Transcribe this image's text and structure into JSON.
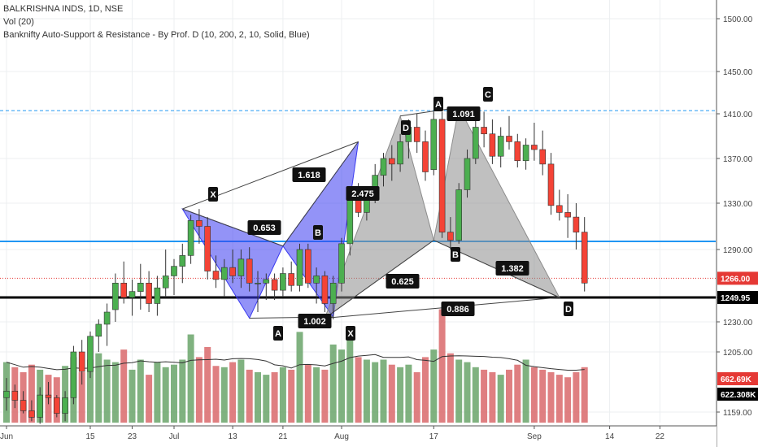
{
  "legend": {
    "symbol_line": "BALKRISHNA INDS, 1D, NSE",
    "volume_line": "Vol (20)",
    "indicator_line": "Banknifty Auto-Support & Resistance - By Prof. D (10, 200, 2, 10, Solid, Blue)"
  },
  "chart_data": {
    "type": "candlestick",
    "symbol": "BALKRISHNA INDS",
    "interval": "1D",
    "exchange": "NSE",
    "y_axis": {
      "ticks": [
        "1159.00",
        "1205.00",
        "1230.00",
        "1250.00",
        "1290.00",
        "1330.00",
        "1370.00",
        "1410.00",
        "1450.00",
        "1500.00"
      ],
      "range": [
        1148,
        1512
      ]
    },
    "x_axis": {
      "ticks": [
        {
          "label": "Jun",
          "index": 0
        },
        {
          "label": "15",
          "index": 10
        },
        {
          "label": "23",
          "index": 15
        },
        {
          "label": "Jul",
          "index": 20
        },
        {
          "label": "13",
          "index": 27
        },
        {
          "label": "21",
          "index": 33
        },
        {
          "label": "Aug",
          "index": 40
        },
        {
          "label": "17",
          "index": 51
        },
        {
          "label": "Sep",
          "index": 63
        },
        {
          "label": "14",
          "index": 72
        },
        {
          "label": "22",
          "index": 78
        }
      ]
    },
    "candles": [
      [
        1170,
        1185,
        1160,
        1175,
        48
      ],
      [
        1175,
        1180,
        1162,
        1168,
        44
      ],
      [
        1168,
        1175,
        1158,
        1160,
        40
      ],
      [
        1160,
        1168,
        1152,
        1155,
        46
      ],
      [
        1155,
        1178,
        1150,
        1172,
        42
      ],
      [
        1172,
        1182,
        1165,
        1170,
        38
      ],
      [
        1170,
        1172,
        1155,
        1158,
        36
      ],
      [
        1158,
        1175,
        1152,
        1170,
        45
      ],
      [
        1170,
        1210,
        1165,
        1205,
        52
      ],
      [
        1205,
        1215,
        1180,
        1190,
        40
      ],
      [
        1190,
        1222,
        1185,
        1218,
        50
      ],
      [
        1218,
        1232,
        1205,
        1228,
        55
      ],
      [
        1228,
        1245,
        1210,
        1238,
        50
      ],
      [
        1240,
        1270,
        1230,
        1262,
        48
      ],
      [
        1262,
        1280,
        1245,
        1250,
        58
      ],
      [
        1250,
        1265,
        1235,
        1255,
        42
      ],
      [
        1255,
        1278,
        1240,
        1262,
        50
      ],
      [
        1262,
        1272,
        1238,
        1245,
        38
      ],
      [
        1245,
        1268,
        1235,
        1258,
        48
      ],
      [
        1258,
        1290,
        1250,
        1268,
        44
      ],
      [
        1268,
        1282,
        1252,
        1276,
        46
      ],
      [
        1276,
        1295,
        1262,
        1285,
        50
      ],
      [
        1285,
        1320,
        1278,
        1315,
        70
      ],
      [
        1315,
        1325,
        1295,
        1310,
        52
      ],
      [
        1310,
        1318,
        1265,
        1272,
        60
      ],
      [
        1272,
        1285,
        1258,
        1265,
        45
      ],
      [
        1265,
        1282,
        1250,
        1275,
        44
      ],
      [
        1275,
        1290,
        1262,
        1268,
        48
      ],
      [
        1268,
        1290,
        1258,
        1282,
        50
      ],
      [
        1282,
        1292,
        1255,
        1262,
        42
      ],
      [
        1262,
        1272,
        1238,
        1262,
        40
      ],
      [
        1262,
        1270,
        1248,
        1265,
        38
      ],
      [
        1265,
        1270,
        1248,
        1256,
        40
      ],
      [
        1256,
        1275,
        1250,
        1270,
        44
      ],
      [
        1270,
        1280,
        1255,
        1260,
        42
      ],
      [
        1260,
        1295,
        1255,
        1290,
        72
      ],
      [
        1290,
        1295,
        1258,
        1262,
        46
      ],
      [
        1262,
        1275,
        1245,
        1268,
        44
      ],
      [
        1268,
        1272,
        1238,
        1245,
        42
      ],
      [
        1245,
        1268,
        1232,
        1262,
        62
      ],
      [
        1262,
        1300,
        1255,
        1295,
        58
      ],
      [
        1295,
        1345,
        1285,
        1340,
        66
      ],
      [
        1340,
        1348,
        1318,
        1322,
        52
      ],
      [
        1322,
        1345,
        1315,
        1340,
        50
      ],
      [
        1340,
        1365,
        1330,
        1355,
        48
      ],
      [
        1355,
        1375,
        1345,
        1370,
        50
      ],
      [
        1370,
        1382,
        1350,
        1365,
        46
      ],
      [
        1365,
        1392,
        1358,
        1385,
        44
      ],
      [
        1385,
        1405,
        1370,
        1398,
        46
      ],
      [
        1398,
        1410,
        1375,
        1385,
        40
      ],
      [
        1385,
        1395,
        1350,
        1358,
        52
      ],
      [
        1360,
        1412,
        1355,
        1405,
        58
      ],
      [
        1405,
        1412,
        1300,
        1305,
        90
      ],
      [
        1305,
        1318,
        1290,
        1298,
        55
      ],
      [
        1298,
        1348,
        1295,
        1342,
        50
      ],
      [
        1342,
        1378,
        1335,
        1370,
        48
      ],
      [
        1370,
        1405,
        1365,
        1398,
        44
      ],
      [
        1398,
        1412,
        1380,
        1392,
        42
      ],
      [
        1392,
        1405,
        1365,
        1372,
        40
      ],
      [
        1372,
        1398,
        1362,
        1390,
        38
      ],
      [
        1390,
        1408,
        1378,
        1385,
        42
      ],
      [
        1385,
        1392,
        1362,
        1368,
        46
      ],
      [
        1368,
        1388,
        1360,
        1382,
        50
      ],
      [
        1382,
        1402,
        1368,
        1378,
        44
      ],
      [
        1378,
        1395,
        1355,
        1365,
        42
      ],
      [
        1365,
        1375,
        1320,
        1328,
        40
      ],
      [
        1328,
        1342,
        1315,
        1322,
        38
      ],
      [
        1322,
        1338,
        1300,
        1318,
        36
      ],
      [
        1318,
        1330,
        1290,
        1305,
        40
      ],
      [
        1305,
        1318,
        1255,
        1262,
        44
      ]
    ],
    "volume_labels": [
      "662.69K",
      "622.308K"
    ],
    "horizontal_levels": [
      {
        "price": 1413,
        "style": "dashed",
        "color": "#2196f3"
      },
      {
        "price": 1297,
        "style": "solid",
        "color": "#2196f3"
      },
      {
        "price": 1266,
        "style": "dotted",
        "color": "#e53935"
      },
      {
        "price": 1250,
        "style": "solid-thick",
        "color": "#000000"
      }
    ],
    "price_labels": [
      {
        "text": "1266.00",
        "price": 1266,
        "bg": "#e53935"
      },
      {
        "text": "1249.95",
        "price": 1250,
        "bg": "#000000"
      }
    ],
    "patterns": [
      {
        "color": "#3a3af0",
        "points": {
          "X": [
            21,
            1325
          ],
          "A": [
            29,
            1233
          ],
          "B": [
            33,
            1293
          ],
          "C": [
            39,
            1234
          ],
          "D": [
            42,
            1385
          ]
        },
        "ratios": [
          "0.653",
          "1.618",
          "1.002",
          "2.475"
        ]
      },
      {
        "color": "#8c8c8c",
        "points": {
          "X": [
            38,
            1233
          ],
          "A": [
            47,
            1408
          ],
          "B": [
            51,
            1298
          ],
          "C": [
            54,
            1416
          ],
          "D": [
            66,
            1250
          ]
        },
        "ratios": [
          "1.091",
          "0.625",
          "1.382",
          "0.886"
        ]
      }
    ],
    "point_labels": [
      "X",
      "A",
      "B",
      "X",
      "D",
      "A",
      "C",
      "B",
      "D"
    ]
  }
}
